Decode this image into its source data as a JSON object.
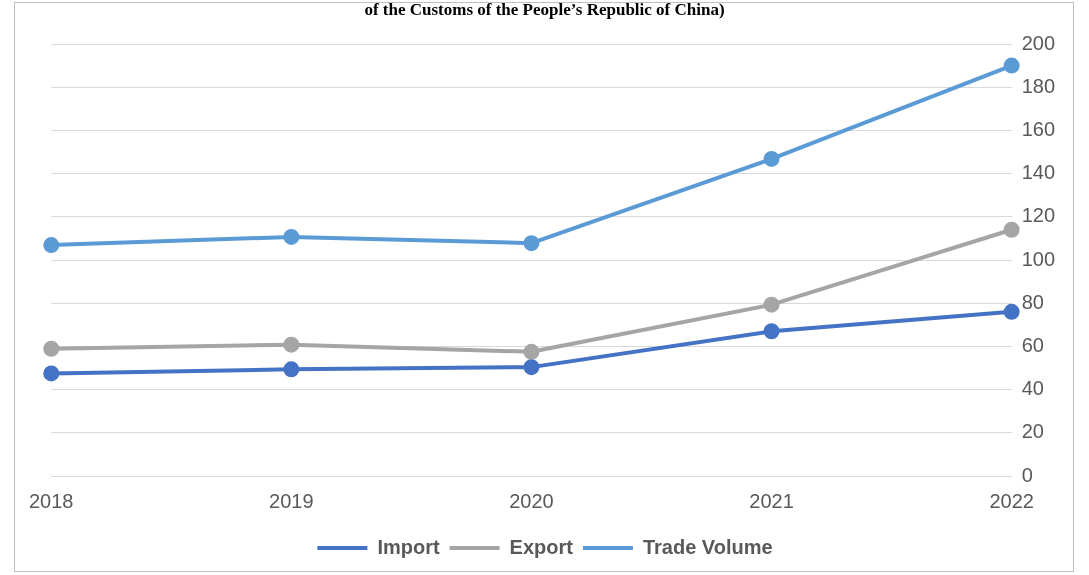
{
  "chart_data": {
    "type": "line",
    "title": "of the Customs of the People’s Republic of China)",
    "categories": [
      "2018",
      "2019",
      "2020",
      "2021",
      "2022"
    ],
    "series": [
      {
        "name": "Import",
        "color": "#4472c4",
        "values": [
          47.5,
          49.4,
          50.4,
          67,
          76
        ]
      },
      {
        "name": "Export",
        "color": "#a5a5a5",
        "values": [
          58.9,
          60.8,
          57.5,
          79.3,
          114
        ]
      },
      {
        "name": "Trade Volume",
        "color": "#5b9bd5",
        "values": [
          106.9,
          110.7,
          107.8,
          146.8,
          190
        ]
      }
    ],
    "ylim": [
      0,
      200
    ],
    "yticks": [
      0,
      20,
      40,
      60,
      80,
      100,
      120,
      140,
      160,
      180,
      200
    ],
    "grid": "y",
    "legend": "bottom",
    "marker": "circle",
    "line_style": "solid"
  }
}
